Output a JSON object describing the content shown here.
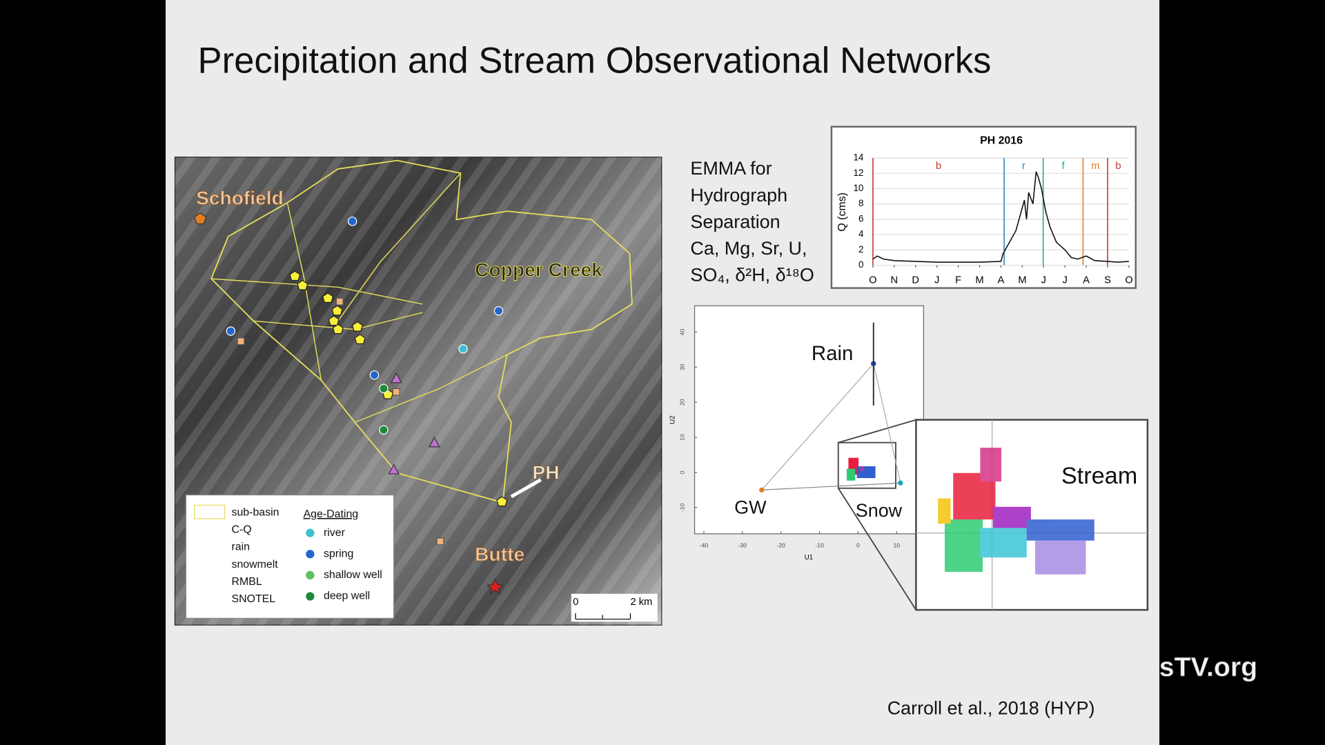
{
  "slide": {
    "title": "Precipitation and Stream Observational  Networks",
    "citation": "Carroll et al., 2018 (HYP)",
    "watermark": "sTV.org"
  },
  "map": {
    "labels": [
      "Schofield",
      "Copper Creek",
      "PH",
      "Butte"
    ],
    "legend": {
      "items": [
        "sub-basin",
        "C-Q",
        "rain",
        "snowmelt",
        "RMBL",
        "SNOTEL"
      ],
      "age_dating_title": "Age-Dating",
      "age_dating_items": [
        "river",
        "spring",
        "shallow well",
        "deep well"
      ]
    },
    "scale_bar": [
      "0",
      "2 km"
    ]
  },
  "emma": {
    "lines": [
      "EMMA for",
      "Hydrograph",
      "Separation",
      "Ca, Mg, Sr, U,",
      "SO₄, δ²H, δ¹⁸O"
    ]
  },
  "chart_data": [
    {
      "type": "line",
      "title": "PH 2016",
      "ylabel": "Q (cms)",
      "color": "#111111",
      "x": [
        0,
        0.2,
        0.5,
        1,
        2,
        3,
        4,
        5,
        6,
        6.1,
        6.3,
        6.5,
        6.7,
        6.9,
        7.1,
        7.2,
        7.3,
        7.5,
        7.65,
        7.75,
        7.9,
        8.1,
        8.3,
        8.6,
        9,
        9.3,
        9.6,
        10,
        10.4,
        11,
        11.5,
        12
      ],
      "values": [
        0.8,
        1.2,
        0.8,
        0.6,
        0.5,
        0.4,
        0.4,
        0.4,
        0.5,
        1.5,
        2.5,
        3.5,
        4.5,
        6.5,
        8.5,
        6,
        9.5,
        8,
        12.2,
        11.5,
        10,
        7,
        5,
        3,
        2,
        1,
        0.8,
        1.2,
        0.6,
        0.5,
        0.4,
        0.5
      ],
      "xlim": [
        0,
        12
      ],
      "ylim": [
        0,
        14
      ],
      "yticks": [
        0,
        2,
        4,
        6,
        8,
        10,
        12,
        14
      ],
      "xticks": [
        {
          "value": 0,
          "label": "O"
        },
        {
          "value": 1,
          "label": "N"
        },
        {
          "value": 2,
          "label": "D"
        },
        {
          "value": 3,
          "label": "J"
        },
        {
          "value": 4,
          "label": "F"
        },
        {
          "value": 5,
          "label": "M"
        },
        {
          "value": 6,
          "label": "A"
        },
        {
          "value": 7,
          "label": "M"
        },
        {
          "value": 8,
          "label": "J"
        },
        {
          "value": 9,
          "label": "J"
        },
        {
          "value": 10,
          "label": "A"
        },
        {
          "value": 11,
          "label": "S"
        },
        {
          "value": 12,
          "label": "O"
        }
      ],
      "phases": [
        {
          "label": "b",
          "x": 0,
          "color": "#c0392b"
        },
        {
          "label": "r",
          "x": 6.15,
          "color": "#2e86c1"
        },
        {
          "label": "f",
          "x": 7.98,
          "color": "#27ae60"
        },
        {
          "label": "m",
          "x": 9.85,
          "color": "#e67e22"
        },
        {
          "label": "b",
          "x": 11,
          "color": "#c0392b"
        }
      ],
      "grid": true
    },
    {
      "type": "scatter",
      "xlabel": "U1",
      "ylabel": "U2",
      "xlim": [
        -42.4,
        17
      ],
      "ylim": [
        -17.5,
        47.5
      ],
      "xticks": [
        -40,
        -30,
        -20,
        -10,
        0,
        10
      ],
      "yticks": [
        -10,
        0,
        10,
        20,
        30,
        40
      ],
      "series": [
        {
          "name": "Rain",
          "x": [
            4
          ],
          "values": [
            31
          ],
          "color": "#1f3a93"
        },
        {
          "name": "GW",
          "x": [
            -25
          ],
          "values": [
            -5
          ],
          "color": "#e67e22"
        },
        {
          "name": "Snow",
          "x": [
            11
          ],
          "values": [
            -3
          ],
          "color": "#17a2b8"
        },
        {
          "name": "Stream",
          "x": [
            1
          ],
          "values": [
            1
          ],
          "color": "#8e44ad"
        }
      ]
    }
  ]
}
